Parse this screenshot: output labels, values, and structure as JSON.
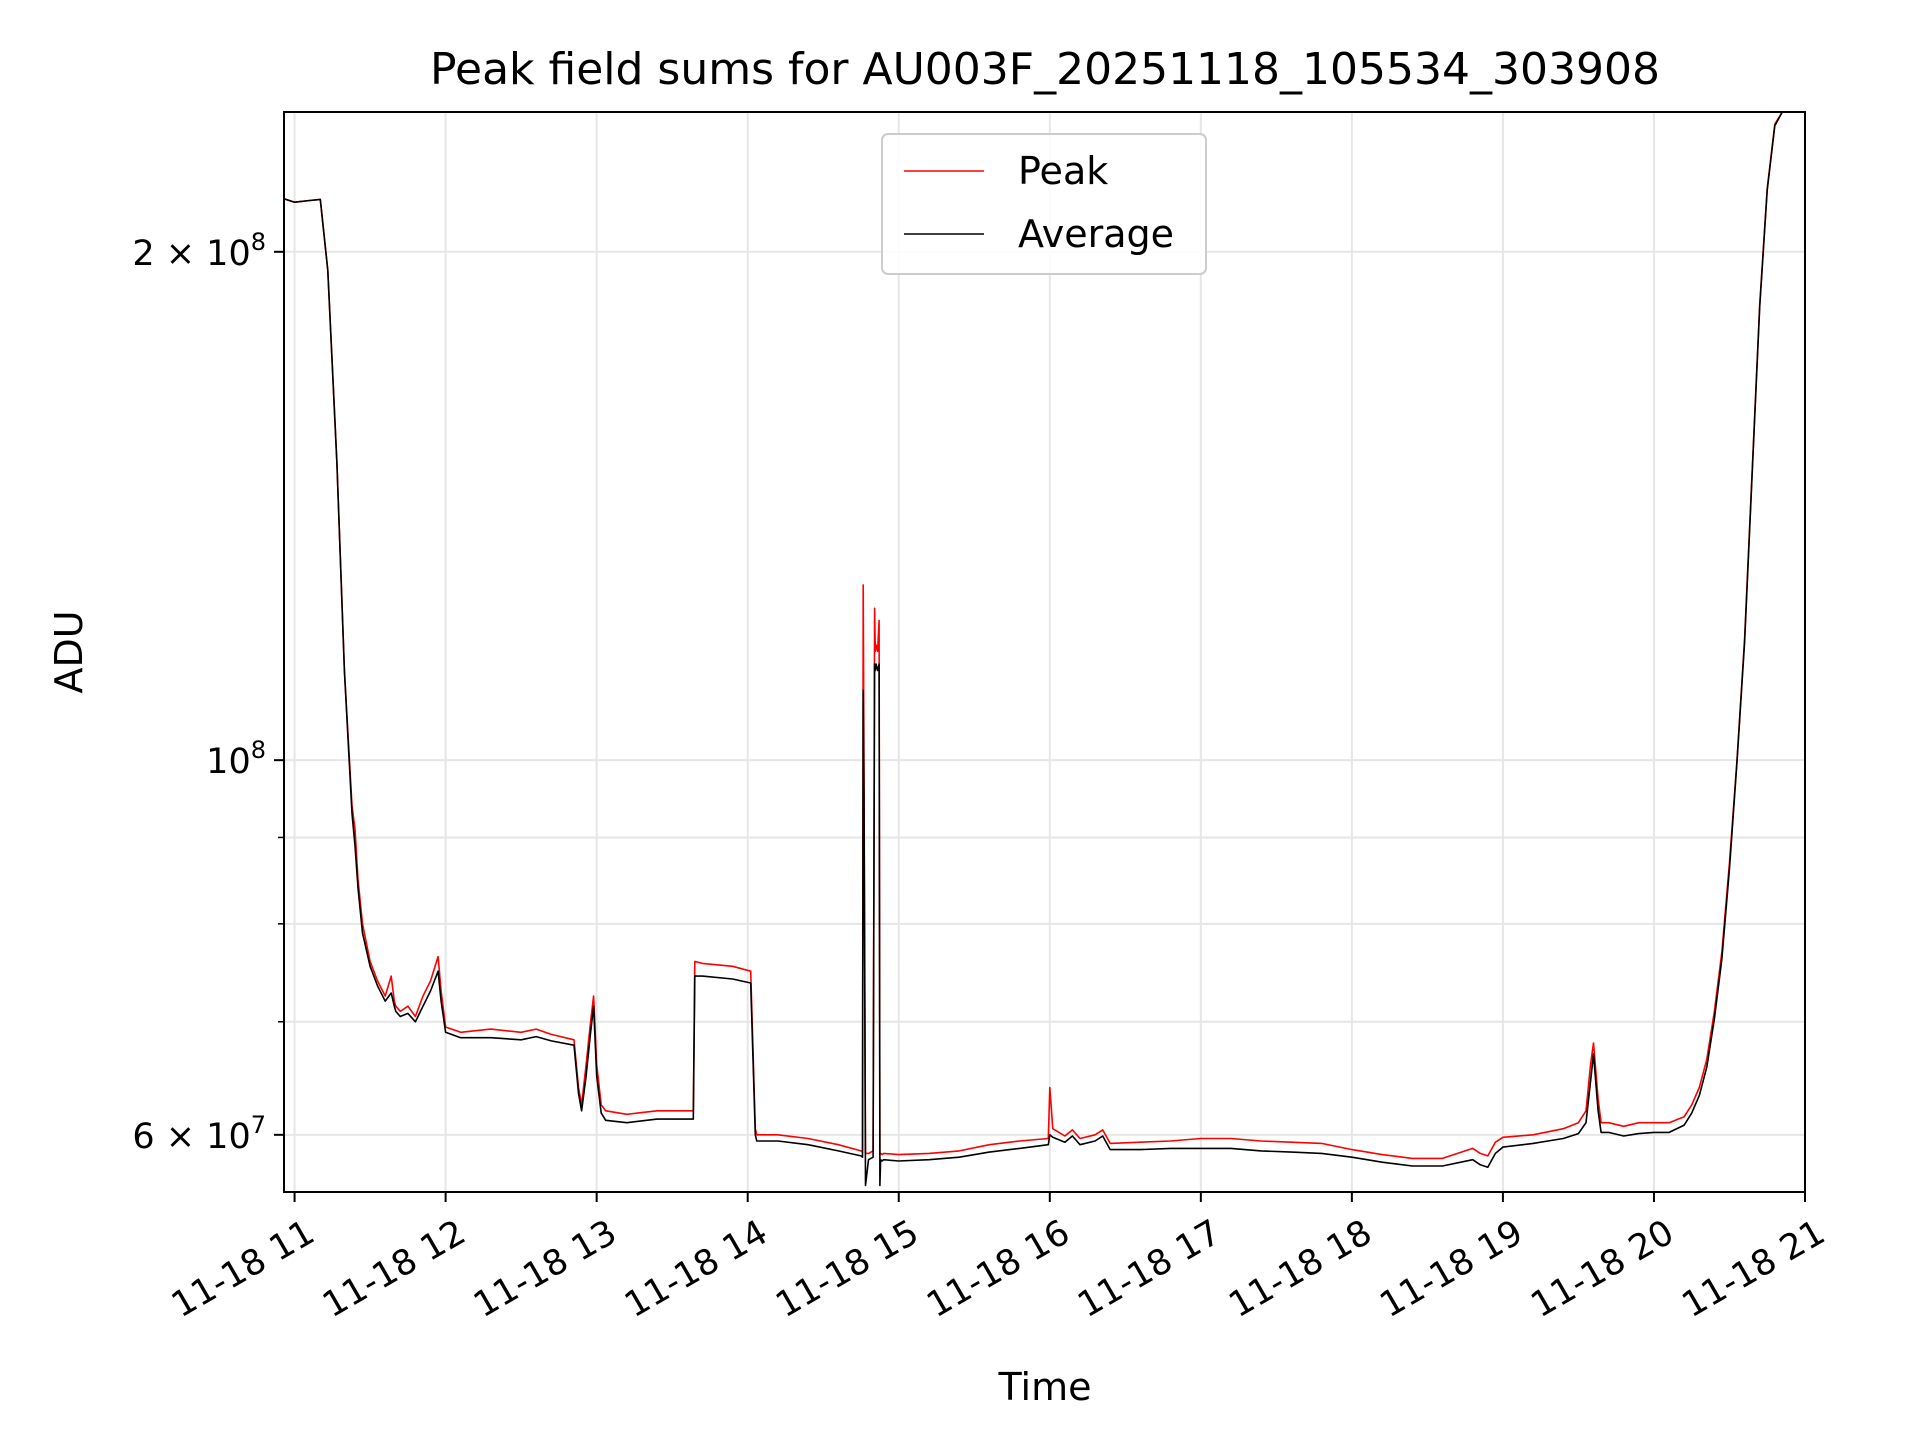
{
  "chart_data": {
    "type": "line",
    "title": "Peak field sums for AU003F_20251118_105534_303908",
    "xlabel": "Time",
    "ylabel": "ADU",
    "x_unit": "time of day on 2025-11-18 (hours)",
    "xlim": [
      10.93,
      21.0
    ],
    "ylim": [
      55500000,
      242000000
    ],
    "y_scale": "log",
    "grid": true,
    "legend_position": "upper center",
    "x_ticks": [
      {
        "value": 11,
        "label": "11-18 11"
      },
      {
        "value": 12,
        "label": "11-18 12"
      },
      {
        "value": 13,
        "label": "11-18 13"
      },
      {
        "value": 14,
        "label": "11-18 14"
      },
      {
        "value": 15,
        "label": "11-18 15"
      },
      {
        "value": 16,
        "label": "11-18 16"
      },
      {
        "value": 17,
        "label": "11-18 17"
      },
      {
        "value": 18,
        "label": "11-18 18"
      },
      {
        "value": 19,
        "label": "11-18 19"
      },
      {
        "value": 20,
        "label": "11-18 20"
      },
      {
        "value": 21,
        "label": "11-18 21"
      }
    ],
    "y_ticks": [
      {
        "value": 60000000,
        "base": "6 × 10",
        "exp": "7"
      },
      {
        "value": 100000000,
        "base": "10",
        "exp": "8"
      },
      {
        "value": 200000000,
        "base": "2 × 10",
        "exp": "8"
      }
    ],
    "y_minor_ticks": [
      70000000,
      80000000,
      90000000
    ],
    "series": [
      {
        "name": "Peak",
        "color": "#ff0000",
        "x": [
          10.93,
          11.0,
          11.1,
          11.17,
          11.22,
          11.28,
          11.33,
          11.38,
          11.4,
          11.42,
          11.45,
          11.5,
          11.55,
          11.6,
          11.64,
          11.66,
          11.67,
          11.7,
          11.75,
          11.8,
          11.85,
          11.9,
          11.95,
          11.97,
          12.0,
          12.1,
          12.3,
          12.5,
          12.6,
          12.7,
          12.85,
          12.88,
          12.9,
          12.93,
          12.96,
          12.98,
          13.0,
          13.03,
          13.06,
          13.2,
          13.4,
          13.64,
          13.65,
          13.7,
          13.9,
          14.02,
          14.05,
          14.06,
          14.2,
          14.4,
          14.6,
          14.75,
          14.76,
          14.765,
          14.77,
          14.78,
          14.8,
          14.83,
          14.84,
          14.845,
          14.85,
          14.86,
          14.87,
          14.875,
          14.88,
          14.89,
          14.9,
          15.0,
          15.2,
          15.4,
          15.6,
          15.8,
          15.99,
          16.0,
          16.02,
          16.1,
          16.15,
          16.2,
          16.3,
          16.35,
          16.4,
          16.6,
          16.8,
          17.0,
          17.2,
          17.4,
          17.6,
          17.8,
          18.0,
          18.2,
          18.4,
          18.6,
          18.8,
          18.85,
          18.9,
          18.95,
          19.0,
          19.2,
          19.4,
          19.5,
          19.55,
          19.58,
          19.6,
          19.63,
          19.65,
          19.7,
          19.8,
          19.9,
          20.0,
          20.1,
          20.2,
          20.25,
          20.3,
          20.35,
          20.4,
          20.45,
          20.5,
          20.55,
          20.6,
          20.65,
          20.7,
          20.75,
          20.8,
          20.85,
          20.9,
          21.0
        ],
        "y": [
          215000000,
          214000000,
          214500000,
          214800000,
          195000000,
          150000000,
          113000000,
          94000000,
          91000000,
          85000000,
          80000000,
          76000000,
          74000000,
          72500000,
          74500000,
          72000000,
          71500000,
          71000000,
          71500000,
          70500000,
          72500000,
          74000000,
          76500000,
          73000000,
          69500000,
          69000000,
          69300000,
          69000000,
          69300000,
          68800000,
          68300000,
          64000000,
          62500000,
          66000000,
          70000000,
          72500000,
          66000000,
          62500000,
          62000000,
          61700000,
          62000000,
          62000000,
          76000000,
          75800000,
          75500000,
          75000000,
          60500000,
          60000000,
          60000000,
          59700000,
          59200000,
          58700000,
          58600000,
          127000000,
          98000000,
          58500000,
          58500000,
          58700000,
          123000000,
          116000000,
          117000000,
          116000000,
          121000000,
          58500000,
          58500000,
          58400000,
          58500000,
          58400000,
          58500000,
          58700000,
          59200000,
          59500000,
          59700000,
          64000000,
          60500000,
          59900000,
          60400000,
          59700000,
          60000000,
          60400000,
          59300000,
          59400000,
          59500000,
          59700000,
          59700000,
          59500000,
          59400000,
          59300000,
          58800000,
          58400000,
          58100000,
          58100000,
          58900000,
          58500000,
          58300000,
          59400000,
          59800000,
          60000000,
          60500000,
          61000000,
          62000000,
          66000000,
          68000000,
          63000000,
          61000000,
          61000000,
          60700000,
          61000000,
          61000000,
          61000000,
          61500000,
          62500000,
          64000000,
          66500000,
          71000000,
          77000000,
          87000000,
          100000000,
          118000000,
          148000000,
          186000000,
          218000000,
          238000000,
          242000000,
          242000000,
          242000000
        ]
      },
      {
        "name": "Average",
        "color": "#000000",
        "x": [
          10.93,
          11.0,
          11.1,
          11.17,
          11.22,
          11.28,
          11.33,
          11.38,
          11.4,
          11.42,
          11.45,
          11.5,
          11.55,
          11.6,
          11.64,
          11.66,
          11.67,
          11.7,
          11.75,
          11.8,
          11.85,
          11.9,
          11.95,
          11.97,
          12.0,
          12.1,
          12.3,
          12.5,
          12.6,
          12.7,
          12.85,
          12.88,
          12.9,
          12.93,
          12.96,
          12.98,
          13.0,
          13.03,
          13.06,
          13.2,
          13.4,
          13.64,
          13.65,
          13.7,
          13.9,
          14.02,
          14.05,
          14.06,
          14.2,
          14.4,
          14.6,
          14.75,
          14.76,
          14.765,
          14.77,
          14.78,
          14.8,
          14.83,
          14.84,
          14.845,
          14.85,
          14.86,
          14.87,
          14.875,
          14.88,
          14.89,
          14.9,
          15.0,
          15.2,
          15.4,
          15.6,
          15.8,
          15.99,
          16.0,
          16.02,
          16.1,
          16.15,
          16.2,
          16.3,
          16.35,
          16.4,
          16.6,
          16.8,
          17.0,
          17.2,
          17.4,
          17.6,
          17.8,
          18.0,
          18.2,
          18.4,
          18.6,
          18.8,
          18.85,
          18.9,
          18.95,
          19.0,
          19.2,
          19.4,
          19.5,
          19.55,
          19.58,
          19.6,
          19.63,
          19.65,
          19.7,
          19.8,
          19.9,
          20.0,
          20.1,
          20.2,
          20.25,
          20.3,
          20.35,
          20.4,
          20.45,
          20.5,
          20.55,
          20.6,
          20.65,
          20.7,
          20.75,
          20.8,
          20.85,
          20.9,
          21.0
        ],
        "y": [
          215000000,
          214000000,
          214500000,
          214800000,
          195000000,
          150000000,
          113000000,
          93000000,
          89000000,
          84000000,
          79000000,
          75500000,
          73500000,
          72000000,
          72800000,
          71500000,
          71000000,
          70500000,
          70800000,
          70000000,
          71500000,
          73000000,
          75000000,
          72000000,
          69000000,
          68500000,
          68500000,
          68300000,
          68600000,
          68200000,
          67800000,
          63500000,
          62000000,
          65000000,
          69000000,
          71500000,
          65000000,
          61800000,
          61200000,
          61000000,
          61300000,
          61300000,
          74500000,
          74500000,
          74200000,
          73800000,
          60000000,
          59500000,
          59500000,
          59200000,
          58700000,
          58300000,
          58200000,
          110000000,
          95000000,
          56000000,
          58000000,
          58200000,
          114000000,
          113000000,
          114000000,
          113000000,
          114000000,
          56000000,
          58000000,
          57900000,
          58000000,
          57900000,
          58000000,
          58200000,
          58600000,
          58900000,
          59200000,
          60000000,
          59800000,
          59400000,
          59900000,
          59200000,
          59500000,
          59900000,
          58800000,
          58800000,
          58900000,
          58900000,
          58900000,
          58700000,
          58600000,
          58500000,
          58200000,
          57800000,
          57500000,
          57500000,
          58000000,
          57600000,
          57400000,
          58500000,
          59000000,
          59300000,
          59700000,
          60100000,
          61000000,
          64500000,
          67000000,
          62000000,
          60200000,
          60200000,
          59900000,
          60100000,
          60200000,
          60200000,
          60800000,
          61800000,
          63300000,
          65800000,
          70300000,
          76300000,
          86300000,
          99800000,
          117500000,
          147500000,
          185500000,
          217500000,
          237500000,
          242000000,
          242000000,
          242000000
        ]
      }
    ]
  }
}
